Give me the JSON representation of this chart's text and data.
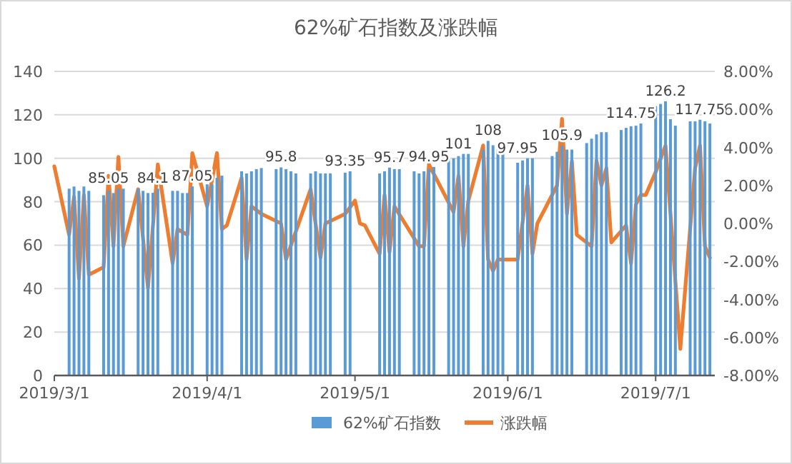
{
  "chart_data": {
    "type": "bar",
    "title": "62%矿石指数及涨跌幅",
    "x": [
      "2019-03-04",
      "2019-03-05",
      "2019-03-06",
      "2019-03-07",
      "2019-03-08",
      "2019-03-11",
      "2019-03-12",
      "2019-03-13",
      "2019-03-14",
      "2019-03-15",
      "2019-03-18",
      "2019-03-19",
      "2019-03-20",
      "2019-03-21",
      "2019-03-22",
      "2019-03-25",
      "2019-03-26",
      "2019-03-27",
      "2019-03-28",
      "2019-03-29",
      "2019-04-01",
      "2019-04-02",
      "2019-04-03",
      "2019-04-04",
      "2019-04-08",
      "2019-04-09",
      "2019-04-10",
      "2019-04-11",
      "2019-04-12",
      "2019-04-15",
      "2019-04-16",
      "2019-04-17",
      "2019-04-18",
      "2019-04-19",
      "2019-04-22",
      "2019-04-23",
      "2019-04-24",
      "2019-04-25",
      "2019-04-26",
      "2019-04-29",
      "2019-04-30",
      "2019-05-06",
      "2019-05-07",
      "2019-05-08",
      "2019-05-09",
      "2019-05-10",
      "2019-05-13",
      "2019-05-14",
      "2019-05-15",
      "2019-05-16",
      "2019-05-17",
      "2019-05-20",
      "2019-05-21",
      "2019-05-22",
      "2019-05-23",
      "2019-05-24",
      "2019-05-27",
      "2019-05-28",
      "2019-05-29",
      "2019-05-30",
      "2019-05-31",
      "2019-06-03",
      "2019-06-04",
      "2019-06-05",
      "2019-06-06",
      "2019-06-10",
      "2019-06-11",
      "2019-06-12",
      "2019-06-13",
      "2019-06-14",
      "2019-06-17",
      "2019-06-18",
      "2019-06-19",
      "2019-06-20",
      "2019-06-21",
      "2019-06-24",
      "2019-06-25",
      "2019-06-26",
      "2019-06-27",
      "2019-06-28",
      "2019-07-01",
      "2019-07-02",
      "2019-07-03",
      "2019-07-04",
      "2019-07-05",
      "2019-07-08",
      "2019-07-09",
      "2019-07-10",
      "2019-07-11",
      "2019-07-12"
    ],
    "series": [
      {
        "name": "62%矿石指数",
        "color": "#5b9bd5",
        "values": [
          86,
          87,
          85,
          87,
          85,
          83,
          85.05,
          84,
          86,
          86,
          86,
          85,
          84,
          84.1,
          86,
          85,
          85,
          84,
          84,
          87.05,
          88,
          88,
          91,
          92,
          94,
          93,
          94,
          95,
          95.5,
          95,
          95.8,
          95,
          94,
          93,
          93,
          94,
          93,
          93,
          93,
          93.35,
          94,
          93,
          94,
          95.7,
          95,
          95,
          94,
          93,
          94,
          94.95,
          96,
          100,
          100,
          101,
          102,
          102,
          104,
          108,
          106,
          104,
          103,
          97.95,
          99,
          100,
          100,
          101,
          103,
          105.9,
          104,
          104,
          107,
          109,
          111,
          112,
          112,
          113,
          114,
          114.75,
          115,
          116,
          124,
          125,
          126.2,
          118,
          115,
          117,
          117,
          117.75,
          117,
          116
        ],
        "value_labels": [
          null,
          null,
          null,
          null,
          null,
          null,
          "85.05",
          null,
          null,
          null,
          null,
          null,
          null,
          "84.1",
          null,
          null,
          null,
          null,
          null,
          "87.05",
          null,
          null,
          null,
          null,
          null,
          null,
          null,
          null,
          null,
          null,
          "95.8",
          null,
          null,
          null,
          null,
          null,
          null,
          null,
          null,
          "93.35",
          null,
          null,
          null,
          "95.7",
          null,
          null,
          null,
          null,
          null,
          "94.95",
          null,
          null,
          null,
          "101",
          null,
          null,
          null,
          "108",
          null,
          null,
          null,
          "97.95",
          null,
          null,
          null,
          null,
          null,
          "105.9",
          null,
          null,
          null,
          null,
          null,
          null,
          null,
          null,
          null,
          "114.75",
          null,
          null,
          null,
          null,
          "126.2",
          null,
          null,
          null,
          null,
          "117.75",
          null,
          null
        ]
      },
      {
        "name": "涨跌幅",
        "type": "line",
        "axis": "y2",
        "color": "#ed7d31",
        "x": [
          "2019-03-01",
          "2019-03-04",
          "2019-03-05",
          "2019-03-06",
          "2019-03-07",
          "2019-03-08",
          "2019-03-11",
          "2019-03-12",
          "2019-03-13",
          "2019-03-14",
          "2019-03-15",
          "2019-03-18",
          "2019-03-20",
          "2019-03-22",
          "2019-03-25",
          "2019-03-26",
          "2019-03-28",
          "2019-03-29",
          "2019-04-01",
          "2019-04-03",
          "2019-04-04",
          "2019-04-05",
          "2019-04-08",
          "2019-04-09",
          "2019-04-10",
          "2019-04-11",
          "2019-04-12",
          "2019-04-16",
          "2019-04-17",
          "2019-04-22",
          "2019-04-24",
          "2019-04-25",
          "2019-04-29",
          "2019-05-01",
          "2019-05-02",
          "2019-05-03",
          "2019-05-06",
          "2019-05-07",
          "2019-05-08",
          "2019-05-09",
          "2019-05-14",
          "2019-05-15",
          "2019-05-16",
          "2019-05-21",
          "2019-05-22",
          "2019-05-23",
          "2019-05-24",
          "2019-05-27",
          "2019-05-28",
          "2019-05-29",
          "2019-05-30",
          "2019-06-03",
          "2019-06-05",
          "2019-06-06",
          "2019-06-07",
          "2019-06-11",
          "2019-06-12",
          "2019-06-13",
          "2019-06-14",
          "2019-06-15",
          "2019-06-18",
          "2019-06-19",
          "2019-06-20",
          "2019-06-21",
          "2019-06-22",
          "2019-06-25",
          "2019-06-26",
          "2019-06-27",
          "2019-06-28",
          "2019-06-29",
          "2019-07-01",
          "2019-07-03",
          "2019-07-06",
          "2019-07-09",
          "2019-07-10",
          "2019-07-11",
          "2019-07-12"
        ],
        "values": [
          3.0,
          -0.6,
          1.4,
          -2.9,
          1.5,
          -2.7,
          -2.3,
          2.5,
          -1.2,
          3.5,
          -1.2,
          1.8,
          -3.4,
          3.1,
          -2.1,
          -0.3,
          -0.6,
          3.7,
          0.9,
          3.7,
          -0.3,
          -0.1,
          2.4,
          -1.9,
          0.9,
          0.7,
          0.5,
          0,
          -1.9,
          1.8,
          -1.8,
          0,
          0.5,
          1.2,
          0,
          -0.1,
          -1.6,
          1.5,
          -1.5,
          0.9,
          -1.2,
          -1.2,
          3.1,
          0.6,
          2.5,
          -1.2,
          1.2,
          4.1,
          -1.9,
          -2.5,
          -1.9,
          -1.9,
          2.0,
          -1.6,
          0,
          2.0,
          5.5,
          0.5,
          3.3,
          -0.6,
          -1.2,
          3.3,
          2.0,
          2.9,
          -1.0,
          -0.1,
          -2.1,
          1.0,
          1.5,
          1.5,
          2.7,
          4.1,
          -6.6,
          2.9,
          4.1,
          -1.2,
          -1.8
        ]
      }
    ],
    "xlim": [
      "2019-03-01",
      "2019-07-13"
    ],
    "xticks": [
      {
        "value": "2019-03-01",
        "label": "2019/3/1"
      },
      {
        "value": "2019-04-01",
        "label": "2019/4/1"
      },
      {
        "value": "2019-05-01",
        "label": "2019/5/1"
      },
      {
        "value": "2019-06-01",
        "label": "2019/6/1"
      },
      {
        "value": "2019-07-01",
        "label": "2019/7/1"
      }
    ],
    "ylim": [
      0,
      140
    ],
    "yticks": [
      0,
      20,
      40,
      60,
      80,
      100,
      120,
      140
    ],
    "y2lim": [
      -8,
      8
    ],
    "y2ticks": [
      {
        "value": -8,
        "label": "-8.00%"
      },
      {
        "value": -6,
        "label": "-6.00%"
      },
      {
        "value": -4,
        "label": "-4.00%"
      },
      {
        "value": -2,
        "label": "-2.00%"
      },
      {
        "value": 0,
        "label": "0.00%"
      },
      {
        "value": 2,
        "label": "2.00%"
      },
      {
        "value": 4,
        "label": "4.00%"
      },
      {
        "value": 6,
        "label": "6.00%"
      },
      {
        "value": 8,
        "label": "8.00%"
      }
    ],
    "grid": "y",
    "legend": "bottom"
  }
}
